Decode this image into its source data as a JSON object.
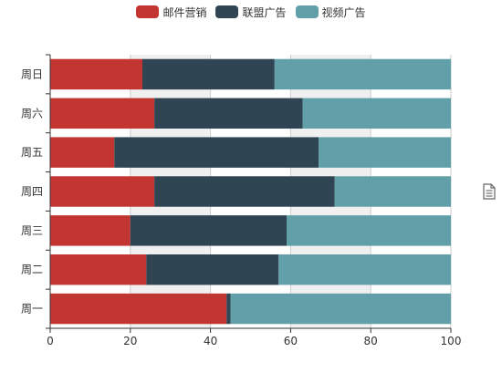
{
  "colors": {
    "email": "#c23531",
    "union": "#2f4554",
    "video": "#61a0a8",
    "axis": "#333333",
    "grid_band": "#f0f0f0",
    "grid_line": "#cccccc",
    "toolbox": "#666666"
  },
  "toolbox": {
    "icon": "data-view-icon"
  },
  "chart_data": {
    "type": "bar",
    "orientation": "horizontal",
    "stacked": true,
    "categories": [
      "周一",
      "周二",
      "周三",
      "周四",
      "周五",
      "周六",
      "周日"
    ],
    "series": [
      {
        "name": "邮件营销",
        "values": [
          44,
          24,
          20,
          26,
          16,
          26,
          23
        ]
      },
      {
        "name": "联盟广告",
        "values": [
          1,
          33,
          39,
          45,
          51,
          37,
          33
        ]
      },
      {
        "name": "视频广告",
        "values": [
          55,
          43,
          41,
          29,
          33,
          37,
          44
        ]
      }
    ],
    "xlim": [
      0,
      100
    ],
    "xticks": [
      0,
      20,
      40,
      60,
      80,
      100
    ],
    "legend": "top-center",
    "grid": "alternating-x-bands"
  }
}
